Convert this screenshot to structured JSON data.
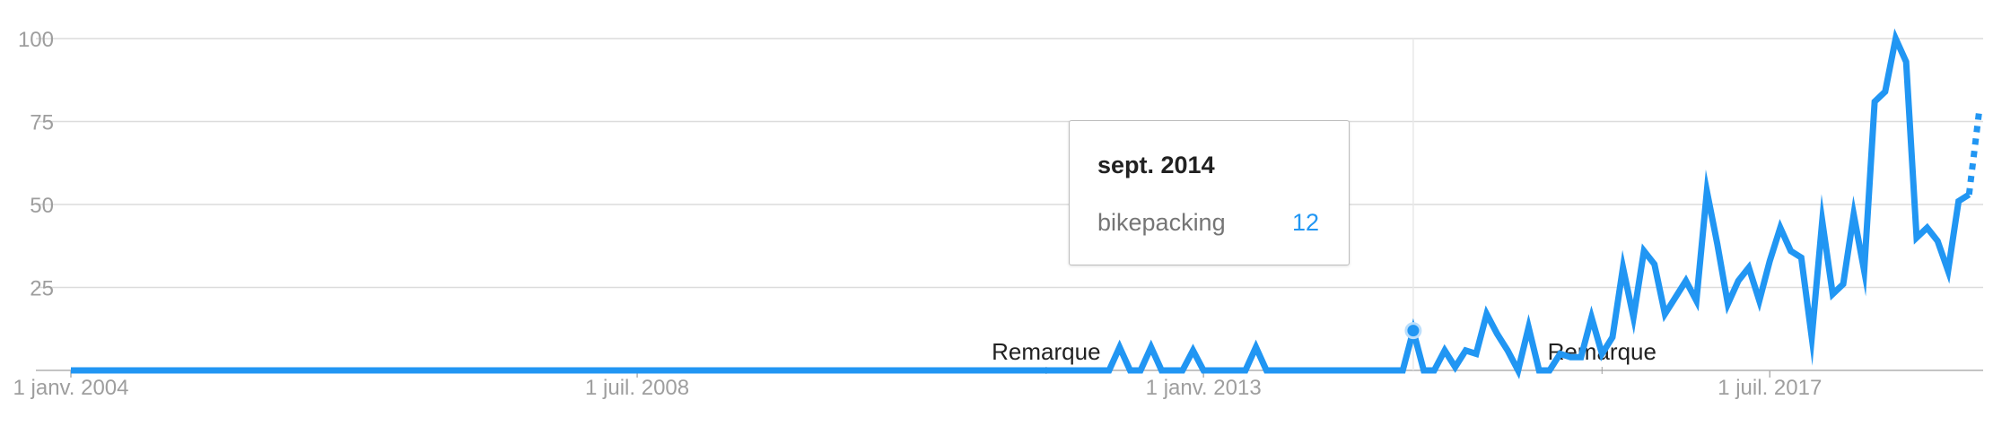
{
  "chart_data": {
    "type": "line",
    "x_axis": {
      "ticks": [
        {
          "label": "1 janv. 2004",
          "date": "2004-01"
        },
        {
          "label": "1 juil. 2008",
          "date": "2008-07"
        },
        {
          "label": "1 janv. 2013",
          "date": "2013-01"
        },
        {
          "label": "1 juil. 2017",
          "date": "2017-07"
        }
      ],
      "range": [
        "2004-01",
        "2019-03"
      ]
    },
    "y_axis": {
      "ticks": [
        "25",
        "50",
        "75",
        "100"
      ],
      "range": [
        0,
        100
      ]
    },
    "grid": true,
    "series": [
      {
        "color": "#2196f3",
        "points": [
          [
            "2004-01",
            0
          ],
          [
            "2012-04",
            0
          ],
          [
            "2012-05",
            7
          ],
          [
            "2012-06",
            0
          ],
          [
            "2012-07",
            0
          ],
          [
            "2012-08",
            7
          ],
          [
            "2012-09",
            0
          ],
          [
            "2012-11",
            0
          ],
          [
            "2012-12",
            6
          ],
          [
            "2013-01",
            0
          ],
          [
            "2013-05",
            0
          ],
          [
            "2013-06",
            7
          ],
          [
            "2013-07",
            0
          ],
          [
            "2014-08",
            0
          ],
          [
            "2014-09",
            12
          ],
          [
            "2014-10",
            0
          ],
          [
            "2014-11",
            0
          ],
          [
            "2014-12",
            6
          ],
          [
            "2015-01",
            1
          ],
          [
            "2015-02",
            6
          ],
          [
            "2015-03",
            5
          ],
          [
            "2015-04",
            17
          ],
          [
            "2015-05",
            11
          ],
          [
            "2015-06",
            6
          ],
          [
            "2015-07",
            0
          ],
          [
            "2015-08",
            13
          ],
          [
            "2015-09",
            0
          ],
          [
            "2015-10",
            0
          ],
          [
            "2015-11",
            5
          ],
          [
            "2015-12",
            4
          ],
          [
            "2016-01",
            4
          ],
          [
            "2016-02",
            16
          ],
          [
            "2016-03",
            5
          ],
          [
            "2016-04",
            10
          ],
          [
            "2016-05",
            31
          ],
          [
            "2016-06",
            16
          ],
          [
            "2016-07",
            36
          ],
          [
            "2016-08",
            32
          ],
          [
            "2016-09",
            17
          ],
          [
            "2016-10",
            22
          ],
          [
            "2016-11",
            27
          ],
          [
            "2016-12",
            21
          ],
          [
            "2017-01",
            54
          ],
          [
            "2017-02",
            38
          ],
          [
            "2017-03",
            20
          ],
          [
            "2017-04",
            27
          ],
          [
            "2017-05",
            31
          ],
          [
            "2017-06",
            21
          ],
          [
            "2017-07",
            33
          ],
          [
            "2017-08",
            43
          ],
          [
            "2017-09",
            36
          ],
          [
            "2017-10",
            34
          ],
          [
            "2017-11",
            10
          ],
          [
            "2017-12",
            45
          ],
          [
            "2018-01",
            23
          ],
          [
            "2018-02",
            26
          ],
          [
            "2018-03",
            47
          ],
          [
            "2018-04",
            30
          ],
          [
            "2018-05",
            81
          ],
          [
            "2018-06",
            84
          ],
          [
            "2018-07",
            100
          ],
          [
            "2018-08",
            93
          ],
          [
            "2018-09",
            40
          ],
          [
            "2018-10",
            43
          ],
          [
            "2018-11",
            39
          ],
          [
            "2018-12",
            30
          ],
          [
            "2019-01",
            51
          ],
          [
            "2019-02",
            53
          ]
        ],
        "partial_points": [
          [
            "2019-02",
            53
          ],
          [
            "2019-03",
            79
          ]
        ]
      }
    ],
    "annotations": [
      {
        "text": "Remarque",
        "date": "2011-10",
        "value": 0
      },
      {
        "text": "Remarque",
        "date": "2016-03",
        "value": 0
      }
    ],
    "tooltip": {
      "date_label": "sept. 2014",
      "series_label": "bikepacking",
      "value_label": "12",
      "date": "2014-09",
      "value": 12
    }
  }
}
